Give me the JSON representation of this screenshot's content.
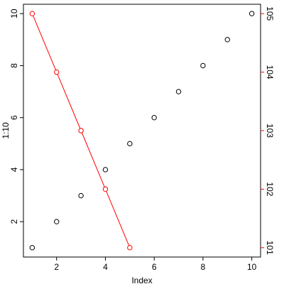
{
  "chart_data": {
    "type": "scatter",
    "xlabel": "Index",
    "ylabel": "1:10",
    "xlim": [
      0.64,
      10.36
    ],
    "ylim": [
      0.64,
      10.36
    ],
    "xticks": [
      "2",
      "4",
      "6",
      "8",
      "10"
    ],
    "yticks": [
      "2",
      "4",
      "6",
      "8",
      "10"
    ],
    "y2lim": [
      100.84,
      105.16
    ],
    "y2ticks": [
      "101",
      "102",
      "103",
      "104",
      "105"
    ],
    "grid": false,
    "series": [
      {
        "axis": "left",
        "type": "scatter",
        "color": "#000000",
        "marker": "open-circle",
        "x": [
          1,
          2,
          3,
          4,
          5,
          6,
          7,
          8,
          9,
          10
        ],
        "y": [
          1,
          2,
          3,
          4,
          5,
          6,
          7,
          8,
          9,
          10
        ]
      },
      {
        "axis": "right",
        "type": "line+points",
        "color": "#ff0000",
        "marker": "open-circle",
        "x": [
          1,
          2,
          3,
          4,
          5
        ],
        "y": [
          105,
          104,
          103,
          102,
          101
        ]
      }
    ]
  }
}
